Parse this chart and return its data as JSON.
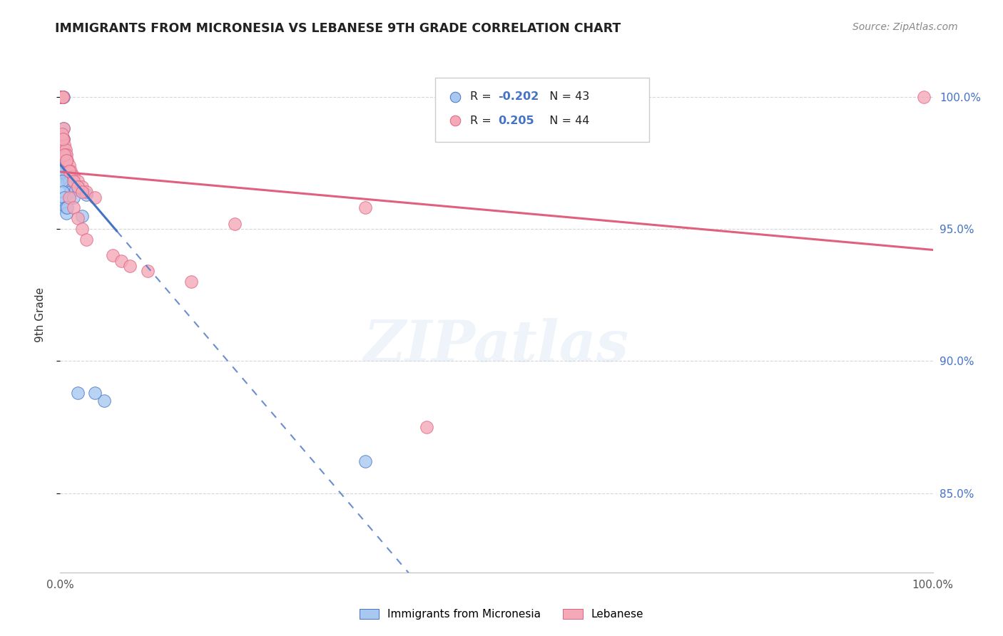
{
  "title": "IMMIGRANTS FROM MICRONESIA VS LEBANESE 9TH GRADE CORRELATION CHART",
  "source": "Source: ZipAtlas.com",
  "ylabel": "9th Grade",
  "legend_blue_label": "Immigrants from Micronesia",
  "legend_pink_label": "Lebanese",
  "r_blue": -0.202,
  "n_blue": 43,
  "r_pink": 0.205,
  "n_pink": 44,
  "blue_color": "#A8C8F0",
  "pink_color": "#F4A8B8",
  "blue_line_color": "#4472C4",
  "pink_line_color": "#E06080",
  "watermark": "ZIPatlas",
  "blue_x": [
    0.001,
    0.001,
    0.001,
    0.002,
    0.002,
    0.002,
    0.003,
    0.003,
    0.003,
    0.004,
    0.004,
    0.004,
    0.005,
    0.005,
    0.006,
    0.006,
    0.007,
    0.007,
    0.008,
    0.008,
    0.009,
    0.01,
    0.011,
    0.012,
    0.013,
    0.015,
    0.018,
    0.02,
    0.025,
    0.03,
    0.001,
    0.002,
    0.003,
    0.004,
    0.005,
    0.006,
    0.007,
    0.35,
    0.05,
    0.04,
    0.015,
    0.008,
    0.02
  ],
  "blue_y": [
    1.0,
    1.0,
    1.0,
    1.0,
    1.0,
    1.0,
    1.0,
    1.0,
    1.0,
    1.0,
    0.988,
    0.984,
    0.98,
    0.976,
    0.978,
    0.974,
    0.975,
    0.97,
    0.972,
    0.968,
    0.97,
    0.968,
    0.966,
    0.964,
    0.97,
    0.968,
    0.965,
    0.966,
    0.955,
    0.963,
    0.972,
    0.968,
    0.964,
    0.96,
    0.962,
    0.958,
    0.956,
    0.862,
    0.885,
    0.888,
    0.962,
    0.958,
    0.888
  ],
  "pink_x": [
    0.001,
    0.001,
    0.001,
    0.001,
    0.002,
    0.002,
    0.003,
    0.003,
    0.004,
    0.004,
    0.005,
    0.005,
    0.006,
    0.007,
    0.008,
    0.01,
    0.012,
    0.015,
    0.02,
    0.025,
    0.03,
    0.04,
    0.002,
    0.003,
    0.005,
    0.007,
    0.01,
    0.015,
    0.02,
    0.025,
    0.2,
    0.35,
    0.42,
    0.99,
    0.01,
    0.015,
    0.02,
    0.025,
    0.03,
    0.06,
    0.07,
    0.08,
    0.1,
    0.15
  ],
  "pink_y": [
    1.0,
    1.0,
    1.0,
    1.0,
    1.0,
    1.0,
    1.0,
    1.0,
    0.988,
    0.984,
    0.982,
    0.978,
    0.98,
    0.978,
    0.976,
    0.974,
    0.972,
    0.97,
    0.968,
    0.966,
    0.964,
    0.962,
    0.986,
    0.984,
    0.978,
    0.976,
    0.972,
    0.968,
    0.966,
    0.964,
    0.952,
    0.958,
    0.875,
    1.0,
    0.962,
    0.958,
    0.954,
    0.95,
    0.946,
    0.94,
    0.938,
    0.936,
    0.934,
    0.93
  ]
}
